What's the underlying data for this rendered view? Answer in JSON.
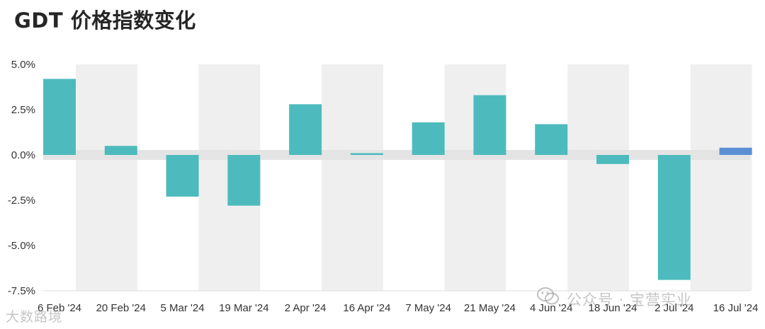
{
  "title": "GDT 价格指数变化",
  "watermark_right": "公众号 · 宝营实业",
  "watermark_left": "大数路境",
  "colors": {
    "bar": "#4dbbbd",
    "bar_highlight": "#5b8fd4",
    "band": "#efefef",
    "zero_band": "#e4e4e4"
  },
  "chart_data": {
    "type": "bar",
    "categories": [
      "6 Feb '24",
      "20 Feb '24",
      "5 Mar '24",
      "19 Mar '24",
      "2 Apr '24",
      "16 Apr '24",
      "7 May '24",
      "21 May '24",
      "4 Jun '24",
      "18 Jun '24",
      "2 Jul '24",
      "16 Jul '24"
    ],
    "values": [
      4.2,
      0.5,
      -2.3,
      -2.8,
      2.8,
      0.1,
      1.8,
      3.3,
      1.7,
      -0.5,
      -6.9,
      0.4
    ],
    "highlight_index": 11,
    "ylim": [
      -7.5,
      5.0
    ],
    "yticks": [
      5.0,
      2.5,
      0.0,
      -2.5,
      -5.0,
      -7.5
    ],
    "ytick_labels": [
      "5.0%",
      "2.5%",
      "0.0%",
      "-2.5%",
      "-5.0%",
      "-7.5%"
    ],
    "grid": "alternating vertical bands",
    "legend": "none"
  }
}
